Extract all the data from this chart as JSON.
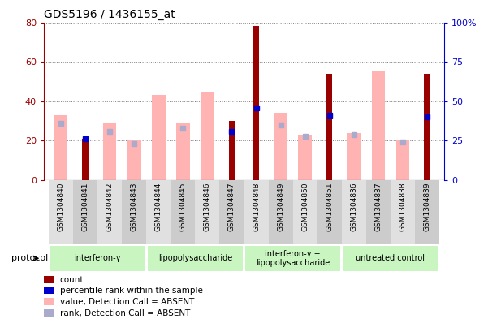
{
  "title": "GDS5196 / 1436155_at",
  "samples": [
    "GSM1304840",
    "GSM1304841",
    "GSM1304842",
    "GSM1304843",
    "GSM1304844",
    "GSM1304845",
    "GSM1304846",
    "GSM1304847",
    "GSM1304848",
    "GSM1304849",
    "GSM1304850",
    "GSM1304851",
    "GSM1304836",
    "GSM1304837",
    "GSM1304838",
    "GSM1304839"
  ],
  "count": [
    0,
    21,
    0,
    0,
    0,
    0,
    0,
    30,
    78,
    0,
    0,
    54,
    0,
    0,
    0,
    54
  ],
  "percentile_rank": [
    null,
    26,
    null,
    null,
    null,
    null,
    null,
    31,
    46,
    null,
    null,
    41,
    null,
    null,
    null,
    40
  ],
  "value_absent": [
    33,
    0,
    29,
    20,
    43,
    29,
    45,
    0,
    0,
    34,
    23,
    0,
    24,
    55,
    20,
    0
  ],
  "rank_absent": [
    36,
    null,
    31,
    23,
    null,
    33,
    null,
    null,
    null,
    35,
    28,
    null,
    29,
    null,
    24,
    null
  ],
  "protocols": [
    {
      "label": "interferon-γ",
      "start": 0,
      "end": 4
    },
    {
      "label": "lipopolysaccharide",
      "start": 4,
      "end": 8
    },
    {
      "label": "interferon-γ +\nlipopolysaccharide",
      "start": 8,
      "end": 12
    },
    {
      "label": "untreated control",
      "start": 12,
      "end": 16
    }
  ],
  "ylim_left": [
    0,
    80
  ],
  "ylim_right": [
    0,
    100
  ],
  "yticks_left": [
    0,
    20,
    40,
    60,
    80
  ],
  "yticks_right": [
    0,
    25,
    50,
    75,
    100
  ],
  "color_count": "#990000",
  "color_percentile": "#0000cc",
  "color_value_absent": "#ffb3b3",
  "color_rank_absent": "#aaaacc",
  "green_light": "#c8f5c0",
  "green_dark": "#66cc66",
  "gray_light": "#e0e0e0",
  "gray_dark": "#cccccc",
  "legend_items": [
    {
      "label": "count",
      "color": "#990000"
    },
    {
      "label": "percentile rank within the sample",
      "color": "#0000cc"
    },
    {
      "label": "value, Detection Call = ABSENT",
      "color": "#ffb3b3"
    },
    {
      "label": "rank, Detection Call = ABSENT",
      "color": "#aaaacc"
    }
  ]
}
